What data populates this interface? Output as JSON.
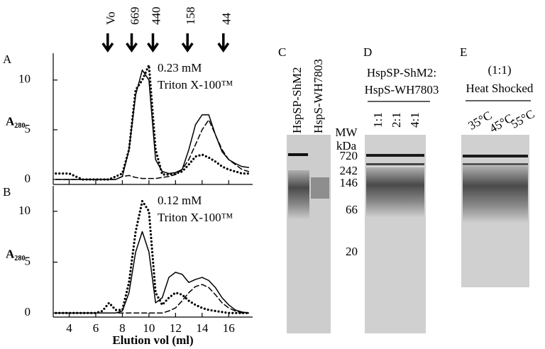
{
  "chart_data": [
    {
      "type": "line",
      "panel": "A",
      "ylabel": "A₂₈₀",
      "annotations": [
        "0.23 mM",
        "Triton X-100™"
      ],
      "markers": [
        {
          "label": "Vo",
          "x": 6.9
        },
        {
          "label": "669",
          "x": 8.7
        },
        {
          "label": "440",
          "x": 10.3
        },
        {
          "label": "158",
          "x": 12.9
        },
        {
          "label": "44",
          "x": 15.6
        }
      ],
      "x": [
        3,
        3.5,
        4,
        4.5,
        5,
        5.5,
        6,
        6.5,
        7,
        7.5,
        8,
        8.5,
        9,
        9.5,
        10,
        10.5,
        11,
        11.5,
        12,
        12.5,
        13,
        13.5,
        14,
        14.5,
        15,
        15.5,
        16,
        16.5,
        17,
        17.5
      ],
      "series": [
        {
          "color": "#000000",
          "style": "solid",
          "values": [
            0,
            0,
            0,
            0,
            0,
            0,
            0,
            0,
            0,
            0,
            0.3,
            3,
            8.5,
            11,
            10,
            2,
            0.8,
            0.6,
            0.7,
            1,
            3,
            5.5,
            6.5,
            6.5,
            4.5,
            2.8,
            2,
            1.6,
            1.3,
            1.2
          ]
        },
        {
          "color": "#000000",
          "style": "dashed",
          "values": [
            0,
            0,
            0,
            0,
            0,
            0,
            0,
            0,
            0,
            0,
            0.3,
            0.4,
            0.2,
            0.1,
            0.1,
            0.1,
            0.2,
            0.3,
            0.5,
            1,
            2,
            3.5,
            5,
            6,
            4.5,
            3,
            2,
            1.5,
            1,
            0.8
          ]
        },
        {
          "color": "#000000",
          "style": "dotted",
          "values": [
            0.6,
            0.6,
            0.6,
            0.3,
            0,
            0,
            0,
            0,
            0,
            0.3,
            0.6,
            3,
            9,
            10,
            11.5,
            3,
            0.5,
            0.5,
            0.6,
            0.8,
            1.5,
            2.3,
            2.5,
            2.2,
            1.8,
            1.3,
            1,
            0.8,
            0.6,
            0.6
          ]
        }
      ],
      "xlim": [
        2.8,
        17.8
      ],
      "xticks": [
        4,
        6,
        8,
        10,
        12,
        14,
        16
      ],
      "ylim": [
        -0.5,
        12.7
      ],
      "yticks": [
        0,
        5,
        10
      ]
    },
    {
      "type": "line",
      "panel": "B",
      "ylabel": "A₂₈₀",
      "xlabel": "Elution vol (ml)",
      "annotations": [
        "0.12 mM",
        "Triton X-100™"
      ],
      "x": [
        3,
        3.5,
        4,
        4.5,
        5,
        5.5,
        6,
        6.5,
        7,
        7.5,
        8,
        8.5,
        9,
        9.5,
        10,
        10.5,
        11,
        11.5,
        12,
        12.5,
        13,
        13.5,
        14,
        14.5,
        15,
        15.5,
        16,
        16.5,
        17,
        17.5
      ],
      "series": [
        {
          "color": "#000000",
          "style": "solid",
          "values": [
            0,
            0,
            0,
            0,
            0,
            0,
            0,
            0,
            0,
            0,
            0.2,
            2,
            6,
            8,
            6,
            1,
            1.5,
            3.5,
            4,
            3.8,
            3,
            3.3,
            3.5,
            3.2,
            2.5,
            1.5,
            0.8,
            0.3,
            0.1,
            0
          ]
        },
        {
          "color": "#000000",
          "style": "dashed",
          "values": [
            0,
            0,
            0,
            0,
            0,
            0,
            0,
            0,
            0,
            0,
            0,
            0,
            0,
            0,
            0,
            0,
            0,
            0.2,
            0.5,
            1.2,
            2,
            2.6,
            2.8,
            2.5,
            1.8,
            1,
            0.5,
            0.2,
            0,
            0
          ]
        },
        {
          "color": "#000000",
          "style": "dotted",
          "values": [
            0,
            0,
            0,
            0,
            0,
            0,
            0,
            0.2,
            1,
            0.3,
            0.3,
            3,
            8,
            11,
            10,
            2,
            0.8,
            1.5,
            2,
            1.8,
            1.2,
            0.8,
            0.5,
            0.3,
            0.2,
            0.1,
            0,
            0,
            0,
            0
          ]
        }
      ],
      "xlim": [
        2.8,
        17.8
      ],
      "xticks": [
        4,
        6,
        8,
        10,
        12,
        14,
        16
      ],
      "ylim": [
        -0.4,
        12.5
      ],
      "yticks": [
        0,
        5,
        10
      ]
    }
  ],
  "gels": {
    "c": {
      "panel": "C",
      "lanes": [
        "HspSP-ShM2",
        "HspS-WH7803"
      ]
    },
    "d": {
      "panel": "D",
      "title": [
        "HspSP-ShM2:",
        "HspS-WH7803"
      ],
      "mw": [
        "MW",
        "kDa"
      ],
      "markers": [
        "720",
        "242",
        "146",
        "66",
        "20"
      ],
      "lanes": [
        "1:1",
        "2:1",
        "4:1"
      ]
    },
    "e": {
      "panel": "E",
      "title": [
        "(1:1)",
        "Heat Shocked"
      ],
      "lanes": [
        "35°C",
        "45°C",
        "55°C"
      ]
    }
  }
}
